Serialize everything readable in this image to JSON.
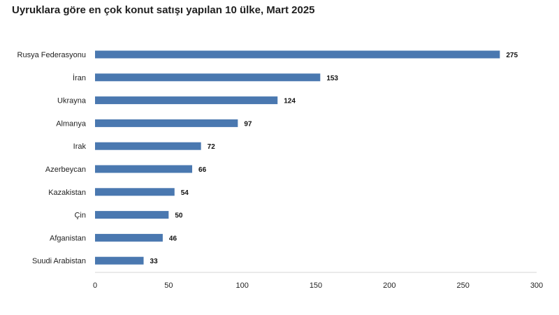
{
  "chart_data": {
    "type": "bar",
    "orientation": "horizontal",
    "title": "Uyruklara göre en çok konut satışı yapılan 10 ülke, Mart 2025",
    "categories": [
      "Rusya Federasyonu",
      "İran",
      "Ukrayna",
      "Almanya",
      "Irak",
      "Azerbeycan",
      "Kazakistan",
      "Çin",
      "Afganistan",
      "Suudi Arabistan"
    ],
    "values": [
      275,
      153,
      124,
      97,
      72,
      66,
      54,
      50,
      46,
      33
    ],
    "xlim": [
      0,
      300
    ],
    "xticks": [
      "0",
      "50",
      "100",
      "150",
      "200",
      "250",
      "300"
    ],
    "xlabel": "",
    "ylabel": "",
    "grid": false,
    "legend": "none",
    "bar_color": "#4a78b0"
  }
}
